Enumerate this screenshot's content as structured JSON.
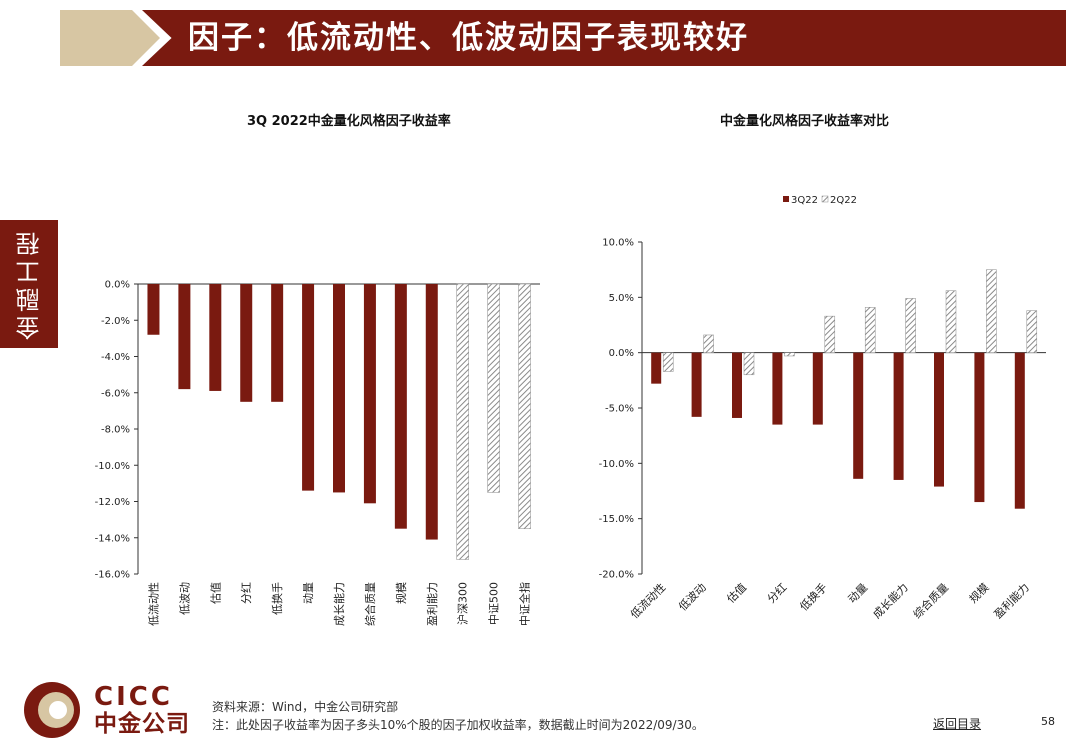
{
  "header": {
    "title": "因子：低流动性、低波动因子表现较好"
  },
  "side_tab": {
    "label": "金融工程"
  },
  "colors": {
    "brand_dark": "#7a1a10",
    "brand_light": "#d7c6a3",
    "bar": "#7a1a10",
    "hatch": "#8a8a8a"
  },
  "chart_data": [
    {
      "type": "bar",
      "title": "3Q 2022中金量化风格因子收益率",
      "categories": [
        "低流动性",
        "低波动",
        "估值",
        "分红",
        "低换手",
        "动量",
        "成长能力",
        "综合质量",
        "规模",
        "盈利能力",
        "沪深300",
        "中证500",
        "中证全指"
      ],
      "values": [
        -2.8,
        -5.8,
        -5.9,
        -6.5,
        -6.5,
        -11.4,
        -11.5,
        -12.1,
        -13.5,
        -14.1,
        -15.2,
        -11.5,
        -13.5
      ],
      "styles": [
        "solid",
        "solid",
        "solid",
        "solid",
        "solid",
        "solid",
        "solid",
        "solid",
        "solid",
        "solid",
        "hatched",
        "hatched",
        "hatched"
      ],
      "ylim": [
        -16,
        0
      ],
      "yticks": [
        0,
        -2,
        -4,
        -6,
        -8,
        -10,
        -12,
        -14,
        -16
      ],
      "ytick_labels": [
        "0.0%",
        "-2.0%",
        "-4.0%",
        "-6.0%",
        "-8.0%",
        "-10.0%",
        "-12.0%",
        "-14.0%",
        "-16.0%"
      ],
      "xlabel": "",
      "ylabel": ""
    },
    {
      "type": "bar",
      "title": "中金量化风格因子收益率对比",
      "categories": [
        "低流动性",
        "低波动",
        "估值",
        "分红",
        "低换手",
        "动量",
        "成长能力",
        "综合质量",
        "规模",
        "盈利能力"
      ],
      "series": [
        {
          "name": "3Q22",
          "values": [
            -2.8,
            -5.8,
            -5.9,
            -6.5,
            -6.5,
            -11.4,
            -11.5,
            -12.1,
            -13.5,
            -14.1
          ],
          "style": "solid"
        },
        {
          "name": "2Q22",
          "values": [
            -1.7,
            1.6,
            -2.0,
            -0.3,
            3.3,
            4.1,
            4.9,
            5.6,
            7.5,
            3.8
          ],
          "style": "hatched"
        }
      ],
      "ylim": [
        -20,
        10
      ],
      "yticks": [
        10,
        5,
        0,
        -5,
        -10,
        -15,
        -20
      ],
      "ytick_labels": [
        "10.0%",
        "5.0%",
        "0.0%",
        "-5.0%",
        "-10.0%",
        "-15.0%",
        "-20.0%"
      ],
      "legend_position": "top",
      "xlabel": "",
      "ylabel": ""
    }
  ],
  "footer": {
    "source": "资料来源：Wind，中金公司研究部",
    "note": "注：此处因子收益率为因子多头10%个股的因子加权收益率，数据截止时间为2022/09/30。",
    "back_link": "返回目录",
    "page_number": "58"
  },
  "logo": {
    "en": "CICC",
    "cn": "中金公司"
  }
}
